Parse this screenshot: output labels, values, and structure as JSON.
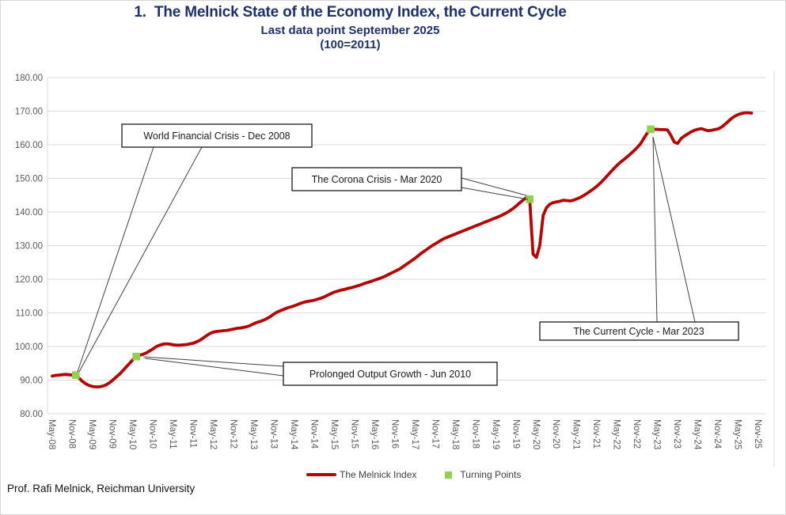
{
  "header": {
    "title": "1.  The Melnick State of the Economy Index, the Current Cycle",
    "subtitle1": "Last data point September 2025",
    "subtitle2": "(100=2011)"
  },
  "footer": {
    "credit": "Prof. Rafi Melnick, Reichman University"
  },
  "legend": {
    "line_label": "The Melnick Index",
    "points_label": "Turning Points"
  },
  "colors": {
    "line": "#b40505",
    "turning_point": "#92d050",
    "title": "#1e3168",
    "gridline": "#d9d9d9",
    "axis_label": "#595959",
    "annotation_border": "#1a1a1a",
    "leader_line": "#404040"
  },
  "annotations": [
    {
      "label": "World Financial Crisis - Dec 2008",
      "target": "Dec-08"
    },
    {
      "label": "Prolonged Output Growth - Jun 2010",
      "target": "Jun-10"
    },
    {
      "label": "The Corona Crisis - Mar 2020",
      "target": "Mar-20"
    },
    {
      "label": "The Current Cycle - Mar 2023",
      "target": "Mar-23"
    }
  ],
  "chart_data": {
    "type": "line",
    "title": "The Melnick State of the Economy Index, the Current Cycle",
    "x_start": "May-2008",
    "x_end": "Sep-2025",
    "frequency": "monthly",
    "ylim": [
      80,
      180
    ],
    "y_tick_step": 10,
    "grid": true,
    "legend_position": "bottom",
    "y_tick_labels": [
      "80.00",
      "90.00",
      "100.00",
      "110.00",
      "120.00",
      "130.00",
      "140.00",
      "150.00",
      "160.00",
      "170.00",
      "180.00"
    ],
    "x_tick_labels": [
      "May-08",
      "Nov-08",
      "May-09",
      "Nov-09",
      "May-10",
      "Nov-10",
      "May-11",
      "Nov-11",
      "May-12",
      "Nov-12",
      "May-13",
      "Nov-13",
      "May-14",
      "Nov-14",
      "May-15",
      "Nov-15",
      "May-16",
      "Nov-16",
      "May-17",
      "Nov-17",
      "May-18",
      "Nov-18",
      "May-19",
      "Nov-19",
      "May-20",
      "Nov-20",
      "May-21",
      "Nov-21",
      "May-22",
      "Nov-22",
      "May-23",
      "Nov-23",
      "May-24",
      "Nov-24",
      "May-25",
      "Nov-25"
    ],
    "series": [
      {
        "name": "The Melnick Index",
        "monthly_values": [
          91.2,
          91.4,
          91.5,
          91.6,
          91.7,
          91.6,
          91.5,
          91.5,
          90.6,
          89.6,
          88.9,
          88.4,
          88.1,
          88.0,
          88.0,
          88.2,
          88.6,
          89.2,
          90.0,
          90.9,
          91.8,
          92.8,
          93.9,
          95.0,
          96.1,
          97.0,
          97.4,
          97.7,
          98.1,
          98.7,
          99.3,
          100.0,
          100.4,
          100.7,
          100.8,
          100.7,
          100.5,
          100.4,
          100.4,
          100.5,
          100.6,
          100.8,
          101.0,
          101.4,
          101.9,
          102.6,
          103.3,
          103.9,
          104.3,
          104.5,
          104.6,
          104.7,
          104.8,
          105.0,
          105.2,
          105.4,
          105.5,
          105.7,
          105.9,
          106.3,
          106.8,
          107.2,
          107.5,
          107.9,
          108.4,
          109.0,
          109.7,
          110.3,
          110.7,
          111.1,
          111.5,
          111.8,
          112.1,
          112.5,
          112.9,
          113.2,
          113.4,
          113.6,
          113.8,
          114.1,
          114.4,
          114.8,
          115.3,
          115.8,
          116.2,
          116.5,
          116.8,
          117.0,
          117.3,
          117.5,
          117.8,
          118.1,
          118.4,
          118.8,
          119.1,
          119.4,
          119.8,
          120.1,
          120.5,
          120.9,
          121.4,
          121.9,
          122.4,
          122.9,
          123.5,
          124.2,
          124.9,
          125.6,
          126.3,
          127.1,
          127.9,
          128.6,
          129.3,
          130.0,
          130.6,
          131.2,
          131.8,
          132.3,
          132.7,
          133.1,
          133.5,
          133.9,
          134.3,
          134.7,
          135.1,
          135.5,
          135.9,
          136.3,
          136.7,
          137.1,
          137.5,
          137.9,
          138.3,
          138.7,
          139.2,
          139.7,
          140.3,
          141.0,
          141.8,
          142.7,
          143.5,
          144.3,
          143.8,
          127.5,
          126.5,
          130.0,
          139.0,
          141.3,
          142.3,
          142.8,
          143.0,
          143.2,
          143.5,
          143.4,
          143.3,
          143.5,
          143.9,
          144.3,
          144.9,
          145.5,
          146.2,
          146.9,
          147.7,
          148.6,
          149.6,
          150.7,
          151.8,
          152.9,
          153.9,
          154.8,
          155.6,
          156.4,
          157.3,
          158.2,
          159.2,
          160.3,
          162.0,
          163.5,
          164.6,
          164.6,
          164.6,
          164.5,
          164.5,
          164.4,
          162.8,
          160.8,
          160.4,
          161.8,
          162.6,
          163.2,
          163.8,
          164.3,
          164.6,
          164.8,
          164.5,
          164.2,
          164.3,
          164.5,
          164.7,
          165.2,
          166.0,
          166.9,
          167.8,
          168.5,
          169.0,
          169.3,
          169.5,
          169.5,
          169.4
        ]
      }
    ],
    "turning_points": [
      {
        "date": "Dec-08",
        "month_index": 7,
        "value": 91.5
      },
      {
        "date": "Jun-10",
        "month_index": 25,
        "value": 97.0
      },
      {
        "date": "Mar-20",
        "month_index": 142,
        "value": 143.8
      },
      {
        "date": "Mar-23",
        "month_index": 178,
        "value": 164.6
      }
    ]
  }
}
